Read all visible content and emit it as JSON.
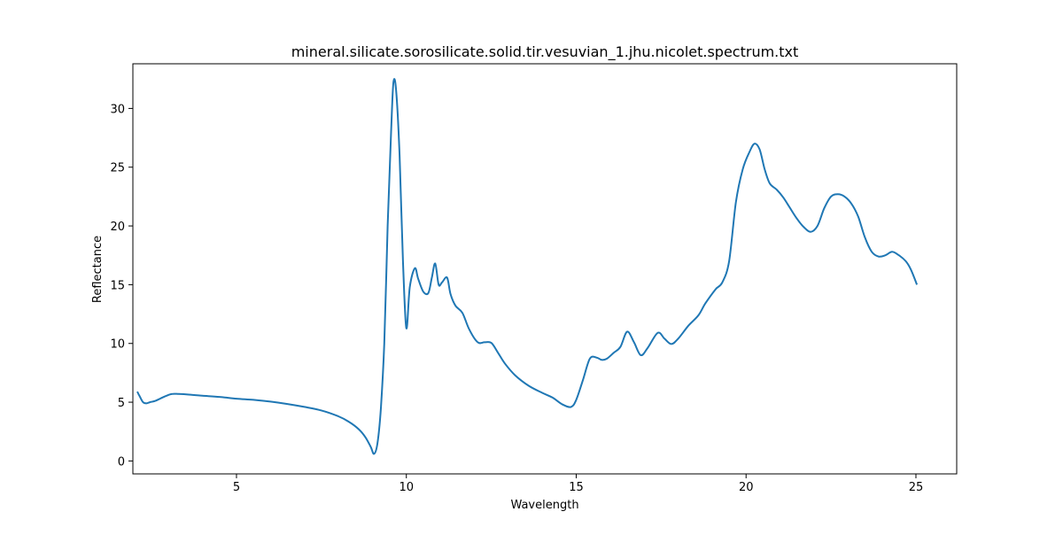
{
  "chart_data": {
    "type": "line",
    "title": "mineral.silicate.sorosilicate.solid.tir.vesuvian_1.jhu.nicolet.spectrum.txt",
    "xlabel": "Wavelength",
    "ylabel": "Reflectance",
    "xlim": [
      1.95,
      26.2
    ],
    "ylim": [
      -1.1,
      33.8
    ],
    "xticks": [
      5,
      10,
      15,
      20,
      25
    ],
    "yticks": [
      0,
      5,
      10,
      15,
      20,
      25,
      30
    ],
    "grid": false,
    "legend": "none",
    "series": [
      {
        "color": "#1f77b4",
        "x": [
          2.08,
          2.15,
          2.25,
          2.35,
          2.45,
          2.6,
          2.75,
          2.9,
          3.1,
          3.3,
          3.6,
          4.0,
          4.5,
          5.0,
          5.5,
          6.0,
          6.5,
          7.0,
          7.5,
          8.0,
          8.3,
          8.6,
          8.8,
          8.95,
          9.05,
          9.15,
          9.25,
          9.35,
          9.45,
          9.55,
          9.62,
          9.7,
          9.8,
          9.9,
          10.0,
          10.1,
          10.25,
          10.35,
          10.5,
          10.65,
          10.75,
          10.85,
          10.95,
          11.05,
          11.2,
          11.3,
          11.45,
          11.65,
          11.85,
          12.1,
          12.3,
          12.5,
          12.7,
          12.9,
          13.2,
          13.6,
          14.0,
          14.3,
          14.6,
          14.85,
          15.0,
          15.2,
          15.4,
          15.6,
          15.75,
          15.9,
          16.1,
          16.3,
          16.5,
          16.7,
          16.9,
          17.1,
          17.4,
          17.6,
          17.8,
          18.0,
          18.3,
          18.6,
          18.8,
          19.1,
          19.3,
          19.5,
          19.7,
          19.9,
          20.1,
          20.25,
          20.4,
          20.55,
          20.7,
          20.9,
          21.1,
          21.3,
          21.5,
          21.7,
          21.9,
          22.1,
          22.3,
          22.5,
          22.7,
          22.9,
          23.1,
          23.3,
          23.5,
          23.7,
          23.9,
          24.1,
          24.3,
          24.5,
          24.7,
          24.85,
          25.03
        ],
        "y": [
          5.9,
          5.5,
          5.0,
          4.9,
          5.0,
          5.1,
          5.3,
          5.5,
          5.7,
          5.7,
          5.65,
          5.55,
          5.45,
          5.3,
          5.2,
          5.05,
          4.85,
          4.6,
          4.3,
          3.8,
          3.35,
          2.7,
          2.0,
          1.2,
          0.6,
          1.5,
          4.5,
          10.0,
          20.0,
          28.0,
          32.2,
          31.5,
          26.0,
          17.0,
          11.3,
          14.8,
          16.4,
          15.5,
          14.4,
          14.3,
          15.6,
          16.8,
          15.0,
          15.2,
          15.6,
          14.2,
          13.2,
          12.6,
          11.2,
          10.1,
          10.1,
          10.05,
          9.2,
          8.3,
          7.3,
          6.4,
          5.8,
          5.4,
          4.8,
          4.6,
          5.2,
          6.9,
          8.7,
          8.8,
          8.6,
          8.7,
          9.2,
          9.7,
          11.0,
          10.1,
          9.0,
          9.6,
          10.9,
          10.4,
          9.95,
          10.4,
          11.5,
          12.4,
          13.4,
          14.6,
          15.2,
          17.0,
          22.0,
          24.8,
          26.3,
          27.0,
          26.5,
          24.8,
          23.6,
          23.1,
          22.4,
          21.5,
          20.6,
          19.9,
          19.5,
          20.0,
          21.5,
          22.5,
          22.7,
          22.5,
          21.9,
          20.8,
          19.0,
          17.8,
          17.4,
          17.5,
          17.8,
          17.5,
          17.0,
          16.3,
          15.0
        ]
      }
    ]
  }
}
